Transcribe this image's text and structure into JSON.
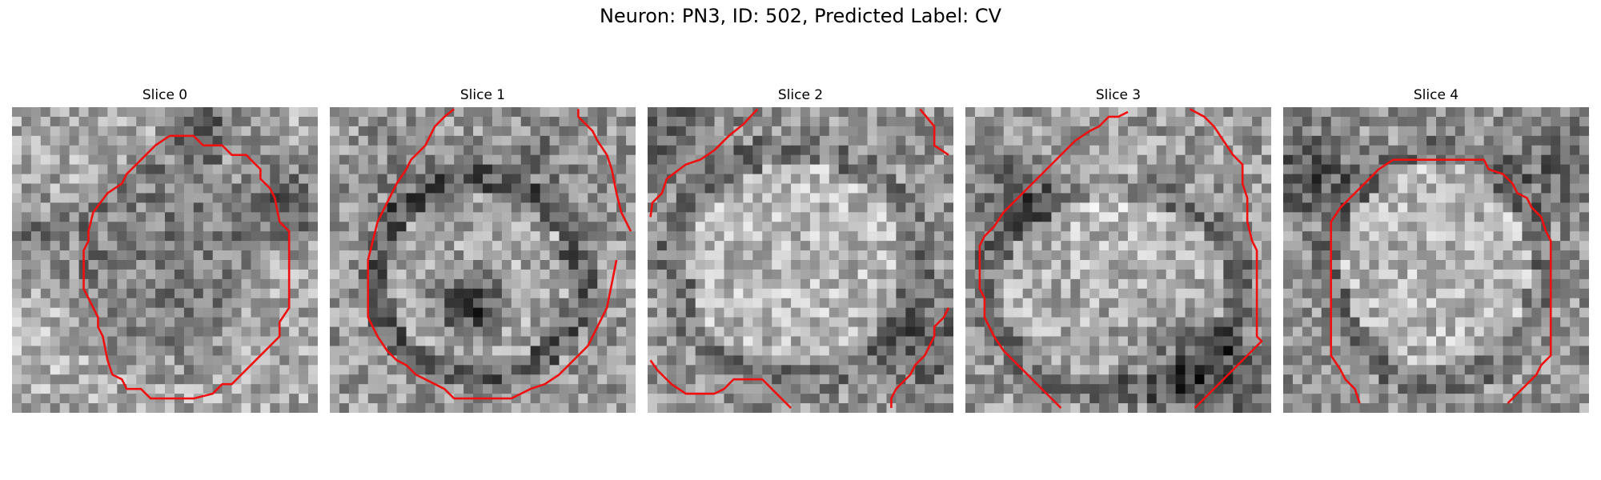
{
  "figure": {
    "title": "Neuron: PN3, ID: 502, Predicted Label: CV"
  },
  "panels": [
    {
      "title": "Slice 0"
    },
    {
      "title": "Slice 1"
    },
    {
      "title": "Slice 2"
    },
    {
      "title": "Slice 3"
    },
    {
      "title": "Slice 4"
    }
  ],
  "colors": {
    "contour": "#ee1111",
    "background": "#ffffff"
  }
}
